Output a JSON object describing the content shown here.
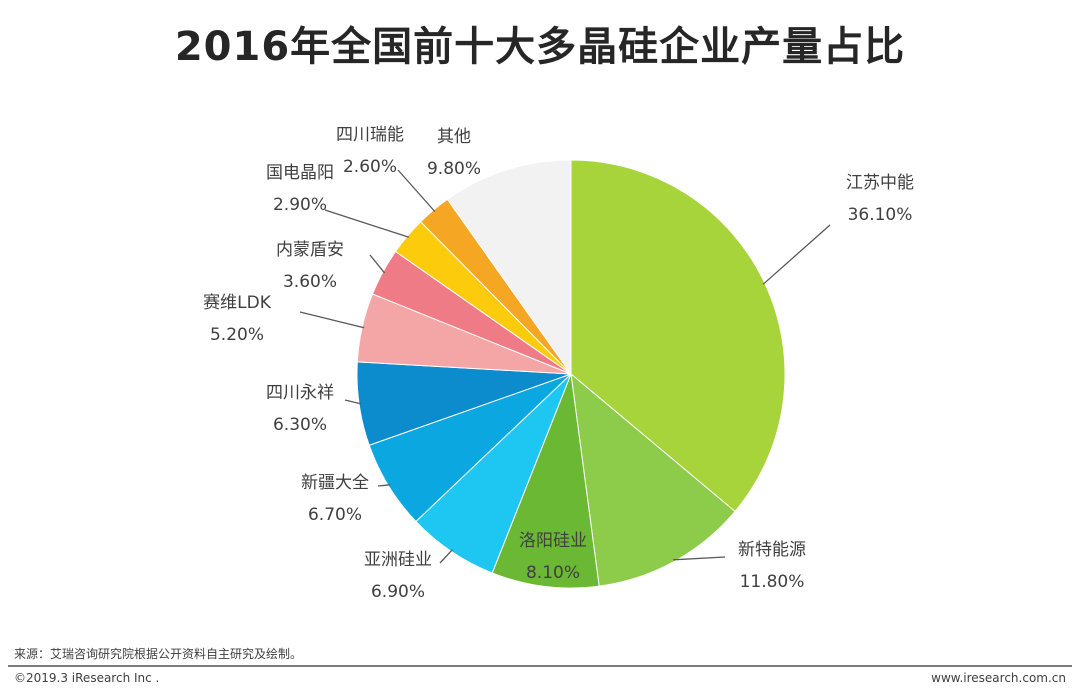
{
  "chart_data": {
    "type": "pie",
    "title": "2016年全国前十大多晶硅企业产量占比",
    "unit": "%",
    "slices": [
      {
        "name": "江苏中能",
        "value": 36.1,
        "label": "36.10%",
        "color": "#a6d43a"
      },
      {
        "name": "新特能源",
        "value": 11.8,
        "label": "11.80%",
        "color": "#8dcc4a"
      },
      {
        "name": "洛阳硅业",
        "value": 8.1,
        "label": "8.10%",
        "color": "#6bb834"
      },
      {
        "name": "亚洲硅业",
        "value": 6.9,
        "label": "6.90%",
        "color": "#1ec6f2"
      },
      {
        "name": "新疆大全",
        "value": 6.7,
        "label": "6.70%",
        "color": "#0aa7e0"
      },
      {
        "name": "四川永祥",
        "value": 6.3,
        "label": "6.30%",
        "color": "#0d8ccd"
      },
      {
        "name": "赛维LDK",
        "value": 5.2,
        "label": "5.20%",
        "color": "#f4a6a6"
      },
      {
        "name": "内蒙盾安",
        "value": 3.6,
        "label": "3.60%",
        "color": "#ef7b86"
      },
      {
        "name": "国电晶阳",
        "value": 2.9,
        "label": "2.90%",
        "color": "#fbcb0c"
      },
      {
        "name": "四川瑞能",
        "value": 2.6,
        "label": "2.60%",
        "color": "#f5a623"
      },
      {
        "name": "其他",
        "value": 9.8,
        "label": "9.80%",
        "color": "#f2f2f2"
      }
    ]
  },
  "footer": {
    "source": "来源：艾瑞咨询研究院根据公开资料自主研究及绘制。",
    "copyright": "©2019.3 iResearch Inc .",
    "website": "www.iresearch.com.cn"
  }
}
